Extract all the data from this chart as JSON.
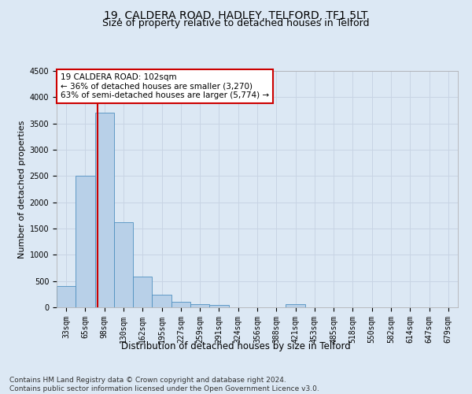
{
  "title": "19, CALDERA ROAD, HADLEY, TELFORD, TF1 5LT",
  "subtitle": "Size of property relative to detached houses in Telford",
  "xlabel": "Distribution of detached houses by size in Telford",
  "ylabel": "Number of detached properties",
  "footnote": "Contains HM Land Registry data © Crown copyright and database right 2024.\nContains public sector information licensed under the Open Government Licence v3.0.",
  "bar_labels": [
    "33sqm",
    "65sqm",
    "98sqm",
    "130sqm",
    "162sqm",
    "195sqm",
    "227sqm",
    "259sqm",
    "291sqm",
    "324sqm",
    "356sqm",
    "388sqm",
    "421sqm",
    "453sqm",
    "485sqm",
    "518sqm",
    "550sqm",
    "582sqm",
    "614sqm",
    "647sqm",
    "679sqm"
  ],
  "bar_values": [
    400,
    2500,
    3700,
    1620,
    590,
    245,
    110,
    55,
    45,
    0,
    0,
    0,
    55,
    0,
    0,
    0,
    0,
    0,
    0,
    0,
    0
  ],
  "bar_color": "#b8d0e8",
  "bar_edge_color": "#5090c0",
  "highlight_label": "19 CALDERA ROAD: 102sqm",
  "annotation_line1": "← 36% of detached houses are smaller (3,270)",
  "annotation_line2": "63% of semi-detached houses are larger (5,774) →",
  "annotation_box_color": "#ffffff",
  "annotation_box_edge_color": "#cc0000",
  "vline_color": "#cc0000",
  "ylim": [
    0,
    4500
  ],
  "yticks": [
    0,
    500,
    1000,
    1500,
    2000,
    2500,
    3000,
    3500,
    4000,
    4500
  ],
  "grid_color": "#c8d4e4",
  "background_color": "#dce8f4",
  "title_fontsize": 10,
  "subtitle_fontsize": 9,
  "xlabel_fontsize": 8.5,
  "ylabel_fontsize": 8,
  "tick_fontsize": 7,
  "footnote_fontsize": 6.5,
  "annotation_fontsize": 7.5
}
